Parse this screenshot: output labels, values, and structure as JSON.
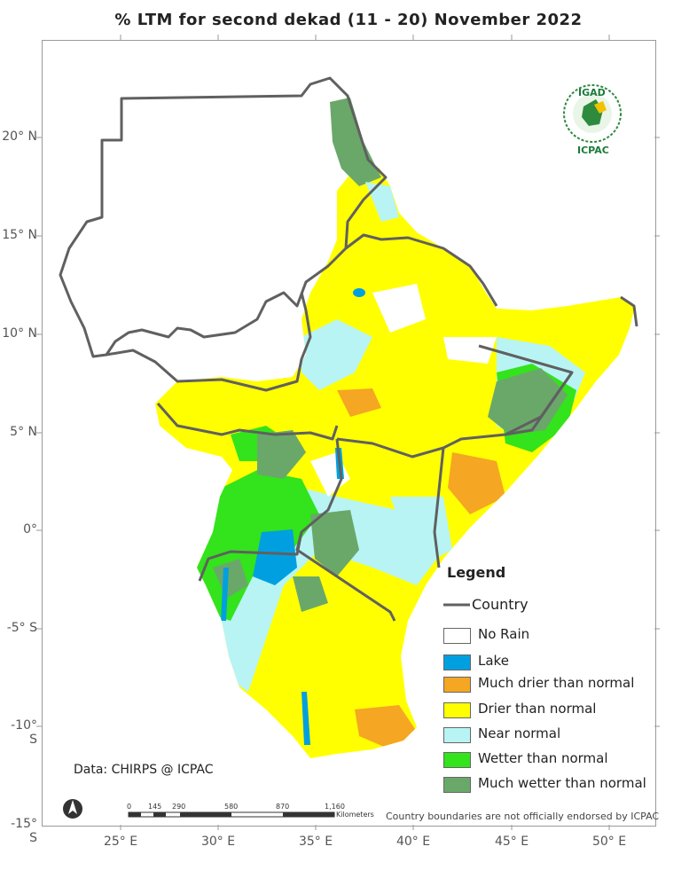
{
  "title": "% LTM for  second  dekad (11 - 20)  November 2022",
  "axes": {
    "y_labels": [
      "20° N",
      "15° N",
      "10° N",
      "5° N",
      "0°",
      "-5° S",
      "-10° S",
      "-15° S"
    ],
    "x_labels": [
      "25° E",
      "30° E",
      "35° E",
      "40° E",
      "45° E",
      "50° E"
    ]
  },
  "legend": {
    "title": "Legend",
    "country_label": "Country",
    "items": [
      {
        "label": "No Rain",
        "color": "#ffffff"
      },
      {
        "label": "Lake",
        "color": "#00a0e0"
      },
      {
        "label": "Much drier than normal",
        "color": "#f5a623"
      },
      {
        "label": "Drier than normal",
        "color": "#ffff00"
      },
      {
        "label": "Near normal",
        "color": "#b8f4f4"
      },
      {
        "label": "Wetter than normal",
        "color": "#33e31c"
      },
      {
        "label": "Much wetter than normal",
        "color": "#6aa86a"
      }
    ]
  },
  "source": "Data: CHIRPS @ ICPAC",
  "scale_bar": {
    "ticks": [
      "0",
      "145",
      "290",
      "580",
      "870",
      "1,160"
    ],
    "unit": "Kilometers"
  },
  "disclaimer": "Country boundaries are not officially endorsed by ICPAC",
  "logo": {
    "top": "IGAD",
    "bottom": "ICPAC"
  },
  "colors": {
    "border": "#606060",
    "no_rain": "#ffffff",
    "lake": "#00a0e0",
    "much_drier": "#f5a623",
    "drier": "#ffff00",
    "near_normal": "#b8f4f4",
    "wetter": "#33e31c",
    "much_wetter": "#6aa86a"
  }
}
